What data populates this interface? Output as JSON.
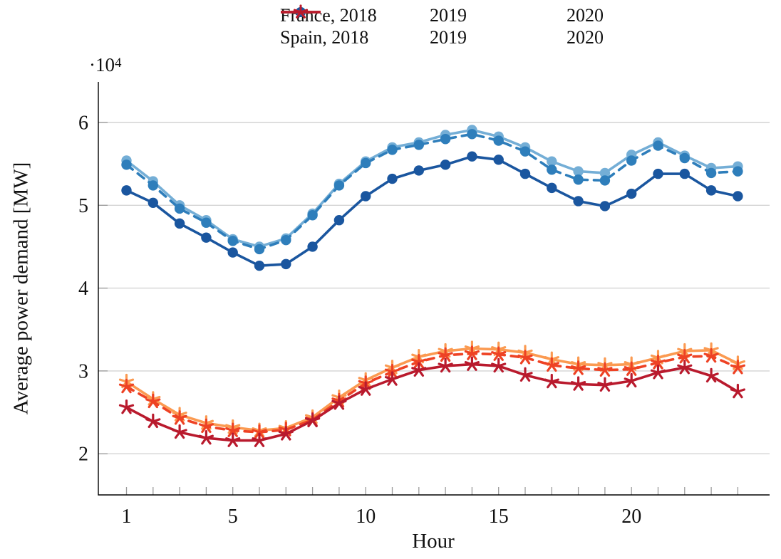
{
  "chart_data": {
    "type": "line",
    "title": "",
    "xlabel": "Hour",
    "ylabel": "Average power demand [MW]",
    "y_multiplier": {
      "base": "·10",
      "exp": "4"
    },
    "x": [
      1,
      2,
      3,
      4,
      5,
      6,
      7,
      8,
      9,
      10,
      11,
      12,
      13,
      14,
      15,
      16,
      17,
      18,
      19,
      20,
      21,
      22,
      23,
      24
    ],
    "x_tick_labels": [
      1,
      5,
      10,
      15,
      20
    ],
    "yticks": [
      2,
      3,
      4,
      5,
      6
    ],
    "xlim": [
      0,
      25.2
    ],
    "ylim": [
      1.5,
      6.5
    ],
    "grid": "horizontal",
    "legend_position": "top-center",
    "units_note": "values in 1e4 MW",
    "series": [
      {
        "name": "France, 2018",
        "color": "#74AED6",
        "dash": "solid",
        "marker": "circle",
        "values": [
          5.54,
          5.29,
          5.0,
          4.82,
          4.59,
          4.5,
          4.6,
          4.9,
          5.26,
          5.53,
          5.7,
          5.76,
          5.85,
          5.91,
          5.83,
          5.7,
          5.53,
          5.41,
          5.39,
          5.61,
          5.76,
          5.6,
          5.45,
          5.47
        ]
      },
      {
        "name": "2019",
        "color": "#2E7EBB",
        "dash": "dashed",
        "marker": "circle",
        "values": [
          5.49,
          5.24,
          4.96,
          4.79,
          4.57,
          4.47,
          4.58,
          4.88,
          5.24,
          5.51,
          5.67,
          5.73,
          5.8,
          5.86,
          5.78,
          5.65,
          5.43,
          5.31,
          5.3,
          5.54,
          5.72,
          5.57,
          5.39,
          5.41
        ]
      },
      {
        "name": "2020",
        "color": "#1A569F",
        "dash": "solid",
        "marker": "circle",
        "values": [
          5.18,
          5.03,
          4.78,
          4.61,
          4.43,
          4.27,
          4.29,
          4.5,
          4.82,
          5.11,
          5.32,
          5.42,
          5.49,
          5.59,
          5.55,
          5.38,
          5.21,
          5.05,
          4.99,
          5.14,
          5.38,
          5.38,
          5.18,
          5.11
        ]
      },
      {
        "name": "Spain, 2018",
        "color": "#FB9A51",
        "dash": "solid",
        "marker": "star",
        "values": [
          2.87,
          2.66,
          2.47,
          2.37,
          2.32,
          2.28,
          2.31,
          2.44,
          2.68,
          2.89,
          3.04,
          3.17,
          3.24,
          3.27,
          3.26,
          3.22,
          3.14,
          3.08,
          3.07,
          3.08,
          3.16,
          3.24,
          3.25,
          3.09
        ]
      },
      {
        "name": "2019",
        "color": "#EE4224",
        "dash": "dashed",
        "marker": "star",
        "values": [
          2.81,
          2.63,
          2.43,
          2.33,
          2.28,
          2.26,
          2.29,
          2.41,
          2.64,
          2.85,
          2.99,
          3.11,
          3.19,
          3.21,
          3.2,
          3.16,
          3.07,
          3.03,
          3.01,
          3.02,
          3.1,
          3.17,
          3.18,
          3.04
        ]
      },
      {
        "name": "2020",
        "color": "#B91A2D",
        "dash": "solid",
        "marker": "star",
        "values": [
          2.56,
          2.39,
          2.26,
          2.19,
          2.16,
          2.16,
          2.24,
          2.4,
          2.61,
          2.78,
          2.9,
          3.01,
          3.06,
          3.08,
          3.06,
          2.95,
          2.87,
          2.84,
          2.83,
          2.88,
          2.98,
          3.04,
          2.94,
          2.75
        ]
      }
    ]
  }
}
